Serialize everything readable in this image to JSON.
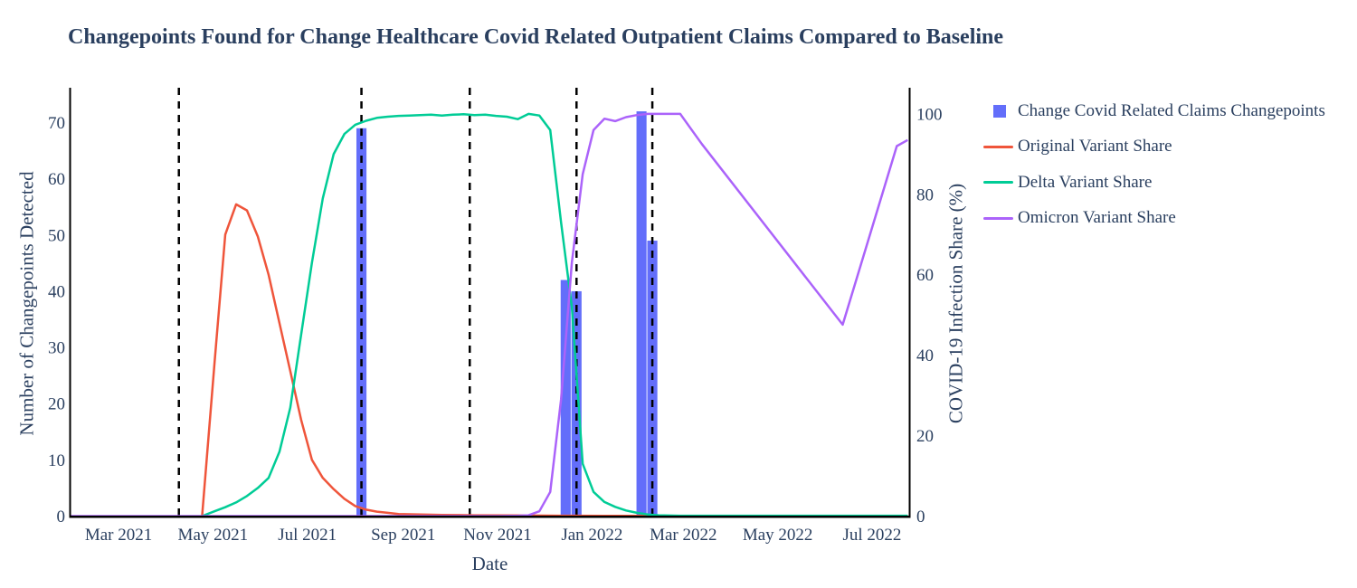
{
  "title": "Changepoints Found for Change Healthcare Covid Related Outpatient Claims Compared to Baseline",
  "text_color": "#2a3f5f",
  "axis_line_color": "#000000",
  "background_color": "#ffffff",
  "chart_data": {
    "type": "bar",
    "subtype": "mixed bar + line, dual y-axis, x is time",
    "title": "Changepoints Found for Change Healthcare Covid Related Outpatient Claims Compared to Baseline",
    "xlabel": "Date",
    "ylabel_left": "Number of Changepoints Detected",
    "ylabel_right": "COVID-19 Infection Share (%)",
    "x_domain": [
      "2021-01-29",
      "2022-07-25"
    ],
    "ylim_left": [
      0,
      76.2
    ],
    "ylim_right": [
      0,
      106.5
    ],
    "grid": "off",
    "legend_position": "outside-top-right",
    "xticks": [
      {
        "date": "2021-03-01",
        "label": "Mar 2021"
      },
      {
        "date": "2021-05-01",
        "label": "May 2021"
      },
      {
        "date": "2021-07-01",
        "label": "Jul 2021"
      },
      {
        "date": "2021-09-01",
        "label": "Sep 2021"
      },
      {
        "date": "2021-11-01",
        "label": "Nov 2021"
      },
      {
        "date": "2022-01-01",
        "label": "Jan 2022"
      },
      {
        "date": "2022-03-01",
        "label": "Mar 2022"
      },
      {
        "date": "2022-05-01",
        "label": "May 2022"
      },
      {
        "date": "2022-07-01",
        "label": "Jul 2022"
      }
    ],
    "yticks_left": [
      0,
      10,
      20,
      30,
      40,
      50,
      60,
      70
    ],
    "yticks_right": [
      0,
      20,
      40,
      60,
      80,
      100
    ],
    "bars": {
      "name": "Change Covid Related Claims Changepoints",
      "color": "#636efa",
      "axis": "left",
      "bar_width_days": 6.5,
      "points": [
        [
          "2021-08-05",
          69
        ],
        [
          "2021-12-15",
          42
        ],
        [
          "2021-12-22",
          40
        ],
        [
          "2022-02-02",
          72
        ],
        [
          "2022-02-09",
          49
        ]
      ]
    },
    "changepoint_vlines": {
      "style": "black dashed vertical lines",
      "dates": [
        "2021-04-09",
        "2021-08-05",
        "2021-10-14",
        "2021-12-22",
        "2022-02-09"
      ]
    },
    "series": [
      {
        "name": "Original Variant Share",
        "color": "#ef553b",
        "axis": "right",
        "points": [
          [
            "2021-04-24",
            0
          ],
          [
            "2021-05-02",
            38
          ],
          [
            "2021-05-09",
            70
          ],
          [
            "2021-05-16",
            77.5
          ],
          [
            "2021-05-23",
            76
          ],
          [
            "2021-05-30",
            69.5
          ],
          [
            "2021-06-06",
            60
          ],
          [
            "2021-06-13",
            48
          ],
          [
            "2021-06-20",
            36
          ],
          [
            "2021-06-27",
            24
          ],
          [
            "2021-07-04",
            14
          ],
          [
            "2021-07-11",
            9.5
          ],
          [
            "2021-07-18",
            6.7
          ],
          [
            "2021-07-25",
            4.3
          ],
          [
            "2021-08-01",
            2.5
          ],
          [
            "2021-08-08",
            1.6
          ],
          [
            "2021-08-15",
            1.1
          ],
          [
            "2021-08-22",
            0.8
          ],
          [
            "2021-08-29",
            0.5
          ],
          [
            "2021-09-12",
            0.4
          ],
          [
            "2021-09-26",
            0.3
          ],
          [
            "2021-10-17",
            0.2
          ],
          [
            "2021-11-14",
            0.15
          ],
          [
            "2021-12-12",
            0.1
          ],
          [
            "2022-01-09",
            0.05
          ],
          [
            "2022-02-06",
            0.05
          ],
          [
            "2022-03-06",
            0.05
          ],
          [
            "2022-04-10",
            0.05
          ],
          [
            "2022-05-15",
            0.05
          ],
          [
            "2022-06-19",
            0.05
          ],
          [
            "2022-07-24",
            0.05
          ]
        ]
      },
      {
        "name": "Delta Variant Share",
        "color": "#00cc96",
        "axis": "right",
        "points": [
          [
            "2021-04-24",
            0
          ],
          [
            "2021-05-02",
            1.2
          ],
          [
            "2021-05-09",
            2.2
          ],
          [
            "2021-05-16",
            3.4
          ],
          [
            "2021-05-23",
            5
          ],
          [
            "2021-05-30",
            7
          ],
          [
            "2021-06-06",
            9.5
          ],
          [
            "2021-06-13",
            16
          ],
          [
            "2021-06-20",
            27
          ],
          [
            "2021-06-27",
            45
          ],
          [
            "2021-07-04",
            63
          ],
          [
            "2021-07-11",
            79
          ],
          [
            "2021-07-18",
            90
          ],
          [
            "2021-07-25",
            95
          ],
          [
            "2021-08-01",
            97.3
          ],
          [
            "2021-08-08",
            98.3
          ],
          [
            "2021-08-15",
            99
          ],
          [
            "2021-08-22",
            99.3
          ],
          [
            "2021-08-29",
            99.5
          ],
          [
            "2021-09-05",
            99.6
          ],
          [
            "2021-09-12",
            99.7
          ],
          [
            "2021-09-19",
            99.8
          ],
          [
            "2021-09-26",
            99.6
          ],
          [
            "2021-10-03",
            99.8
          ],
          [
            "2021-10-10",
            99.9
          ],
          [
            "2021-10-17",
            99.7
          ],
          [
            "2021-10-24",
            99.8
          ],
          [
            "2021-10-31",
            99.5
          ],
          [
            "2021-11-07",
            99.3
          ],
          [
            "2021-11-14",
            98.7
          ],
          [
            "2021-11-21",
            100
          ],
          [
            "2021-11-28",
            99.6
          ],
          [
            "2021-12-05",
            96
          ],
          [
            "2021-12-12",
            73
          ],
          [
            "2021-12-19",
            52
          ],
          [
            "2021-12-26",
            13
          ],
          [
            "2022-01-02",
            6
          ],
          [
            "2022-01-09",
            3.5
          ],
          [
            "2022-01-16",
            2.3
          ],
          [
            "2022-01-23",
            1.4
          ],
          [
            "2022-01-30",
            0.8
          ],
          [
            "2022-02-06",
            0.4
          ],
          [
            "2022-02-13",
            0.2
          ],
          [
            "2022-02-27",
            0.1
          ],
          [
            "2022-03-27",
            0.1
          ],
          [
            "2022-04-24",
            0.1
          ],
          [
            "2022-05-22",
            0.1
          ],
          [
            "2022-06-19",
            0.1
          ],
          [
            "2022-07-24",
            0.1
          ]
        ]
      },
      {
        "name": "Omicron Variant Share",
        "color": "#ab63fa",
        "axis": "right",
        "points": [
          [
            "2021-01-29",
            0
          ],
          [
            "2021-03-01",
            0
          ],
          [
            "2021-04-01",
            0
          ],
          [
            "2021-05-01",
            0
          ],
          [
            "2021-06-01",
            0
          ],
          [
            "2021-07-01",
            0
          ],
          [
            "2021-08-01",
            0
          ],
          [
            "2021-09-01",
            0
          ],
          [
            "2021-10-01",
            0
          ],
          [
            "2021-11-01",
            0
          ],
          [
            "2021-11-14",
            0.1
          ],
          [
            "2021-11-21",
            0.2
          ],
          [
            "2021-11-28",
            1.2
          ],
          [
            "2021-12-05",
            6
          ],
          [
            "2021-12-12",
            29
          ],
          [
            "2021-12-19",
            63
          ],
          [
            "2021-12-26",
            85
          ],
          [
            "2022-01-02",
            96
          ],
          [
            "2022-01-09",
            98.8
          ],
          [
            "2022-01-16",
            98.2
          ],
          [
            "2022-01-23",
            99.2
          ],
          [
            "2022-01-30",
            99.7
          ],
          [
            "2022-02-06",
            100
          ],
          [
            "2022-02-13",
            100
          ],
          [
            "2022-02-20",
            100
          ],
          [
            "2022-02-27",
            100
          ],
          [
            "2022-03-13",
            92.5
          ],
          [
            "2022-06-12",
            47.6
          ],
          [
            "2022-07-17",
            92
          ],
          [
            "2022-07-24",
            93.5
          ]
        ]
      }
    ],
    "legend": [
      {
        "label": "Change Covid Related Claims Changepoints",
        "swatch": "square",
        "color": "#636efa"
      },
      {
        "label": "Original Variant Share",
        "swatch": "line",
        "color": "#ef553b"
      },
      {
        "label": "Delta Variant Share",
        "swatch": "line",
        "color": "#00cc96"
      },
      {
        "label": "Omicron Variant Share",
        "swatch": "line",
        "color": "#ab63fa"
      }
    ]
  },
  "xaxis": {
    "title": "Date"
  },
  "yaxis_left": {
    "title": "Number of Changepoints Detected"
  },
  "yaxis_right": {
    "title": "COVID-19 Infection Share (%)"
  }
}
